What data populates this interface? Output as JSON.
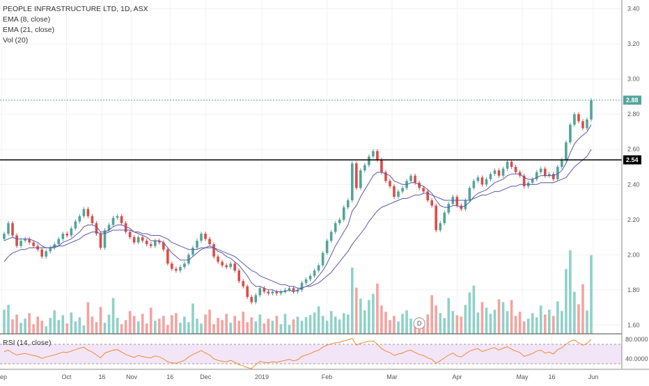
{
  "legend": {
    "title": "PEOPLE INFRASTRUCTURE LTD, 1D, ASX",
    "ema8": "EMA (8, close)",
    "ema21": "EMA (21, close)",
    "vol": "Vol (20)"
  },
  "rsi_legend": "RSI (14, close)",
  "dividend_marker": "D",
  "colors": {
    "up": "#52a49a",
    "down": "#dd4b47",
    "vol_up": "#8fd1c8",
    "vol_down": "#f4a3a0",
    "ema": "#5957a8",
    "rsi": "#f0892e",
    "rsi_band": "#f3e5f8",
    "grid": "#f0f0f0",
    "resistance": "#000000",
    "last_price": "#52a49a"
  },
  "chart_data": {
    "type": "candlestick",
    "title": "PEOPLE INFRASTRUCTURE LTD, 1D, ASX",
    "y_ticks": [
      "3.40",
      "3.20",
      "3.00",
      "2.80",
      "2.60",
      "2.40",
      "2.20",
      "2.00",
      "1.80",
      "1.60"
    ],
    "ylim": [
      1.55,
      3.45
    ],
    "x_ticks": [
      "Sep",
      "Oct",
      "16",
      "Nov",
      "16",
      "Dec",
      "2019",
      "Feb",
      "Mar",
      "Apr",
      "May",
      "16",
      "Jun"
    ],
    "resistance_level": 2.54,
    "resistance_label": "2.54",
    "last_price": 2.88,
    "last_price_label": "2.88",
    "rsi_ticks": [
      "80.0000",
      "40.0000"
    ],
    "rsi_band": [
      30,
      70
    ],
    "closes": [
      2.12,
      2.18,
      2.11,
      2.05,
      2.08,
      2.09,
      2.07,
      2.05,
      2.03,
      1.99,
      2.02,
      2.04,
      2.06,
      2.09,
      2.12,
      2.11,
      2.15,
      2.19,
      2.22,
      2.26,
      2.22,
      2.18,
      2.12,
      2.04,
      2.14,
      2.17,
      2.21,
      2.22,
      2.18,
      2.13,
      2.1,
      2.07,
      2.1,
      2.08,
      2.06,
      2.05,
      2.08,
      2.07,
      2.03,
      1.95,
      1.92,
      1.91,
      1.93,
      1.95,
      2.0,
      2.04,
      2.08,
      2.12,
      2.09,
      2.06,
      1.99,
      1.96,
      1.94,
      1.93,
      1.95,
      1.91,
      1.85,
      1.82,
      1.76,
      1.73,
      1.77,
      1.81,
      1.79,
      1.78,
      1.79,
      1.78,
      1.79,
      1.8,
      1.81,
      1.79,
      1.8,
      1.84,
      1.86,
      1.88,
      1.91,
      1.94,
      2.01,
      2.08,
      2.13,
      2.18,
      2.2,
      2.27,
      2.31,
      2.52,
      2.38,
      2.48,
      2.51,
      2.56,
      2.59,
      2.54,
      2.47,
      2.42,
      2.39,
      2.33,
      2.36,
      2.38,
      2.42,
      2.45,
      2.41,
      2.38,
      2.36,
      2.31,
      2.28,
      2.14,
      2.18,
      2.24,
      2.29,
      2.33,
      2.28,
      2.26,
      2.31,
      2.38,
      2.42,
      2.44,
      2.4,
      2.43,
      2.46,
      2.48,
      2.45,
      2.49,
      2.53,
      2.5,
      2.47,
      2.45,
      2.39,
      2.41,
      2.43,
      2.47,
      2.49,
      2.45,
      2.46,
      2.43,
      2.5,
      2.54,
      2.64,
      2.74,
      2.8,
      2.76,
      2.72,
      2.77,
      2.88
    ],
    "volumes": [
      3.5,
      4.2,
      2.1,
      2.8,
      1.6,
      2.2,
      3.0,
      1.4,
      2.5,
      1.9,
      1.1,
      2.3,
      3.4,
      2.0,
      2.7,
      1.5,
      3.1,
      1.8,
      2.4,
      1.2,
      4.6,
      2.5,
      1.7,
      3.9,
      1.6,
      2.8,
      5.2,
      2.3,
      1.4,
      2.0,
      3.3,
      2.6,
      1.8,
      2.9,
      1.5,
      3.8,
      1.9,
      2.2,
      2.6,
      1.3,
      2.7,
      3.0,
      1.6,
      2.5,
      1.7,
      4.4,
      2.2,
      1.5,
      2.8,
      3.5,
      1.4,
      2.3,
      2.0,
      2.9,
      1.6,
      2.6,
      1.9,
      3.2,
      1.7,
      2.4,
      1.8,
      2.8,
      1.5,
      2.2,
      1.9,
      2.6,
      1.4,
      2.9,
      1.3,
      2.1,
      2.5,
      1.9,
      2.4,
      2.7,
      3.1,
      4.0,
      2.6,
      1.9,
      3.3,
      2.5,
      2.1,
      3.0,
      2.8,
      9.6,
      6.7,
      5.1,
      3.4,
      4.9,
      5.8,
      7.3,
      4.1,
      3.2,
      2.0,
      2.6,
      1.8,
      2.9,
      3.4,
      2.2,
      1.7,
      2.4,
      1.6,
      2.8,
      5.6,
      4.1,
      3.0,
      2.3,
      5.2,
      3.3,
      2.7,
      2.5,
      4.2,
      6.0,
      7.0,
      3.1,
      4.6,
      3.8,
      2.9,
      3.5,
      5.0,
      4.6,
      3.3,
      4.9,
      2.6,
      3.2,
      1.8,
      2.2,
      3.0,
      2.4,
      4.1,
      2.8,
      3.5,
      2.6,
      4.7,
      3.3,
      9.4,
      12.1,
      6.1,
      4.3,
      7.2,
      3.4,
      11.4
    ],
    "ema8": [
      2.08,
      2.09,
      2.1,
      2.09,
      2.09,
      2.09,
      2.09,
      2.08,
      2.07,
      2.05,
      2.04,
      2.04,
      2.05,
      2.05,
      2.07,
      2.08,
      2.09,
      2.11,
      2.13,
      2.16,
      2.17,
      2.17,
      2.16,
      2.13,
      2.13,
      2.14,
      2.16,
      2.17,
      2.17,
      2.16,
      2.15,
      2.13,
      2.12,
      2.11,
      2.1,
      2.08,
      2.08,
      2.08,
      2.07,
      2.04,
      2.01,
      1.99,
      1.97,
      1.97,
      1.97,
      1.99,
      2.01,
      2.03,
      2.04,
      2.05,
      2.04,
      2.02,
      2.01,
      1.99,
      1.98,
      1.96,
      1.94,
      1.91,
      1.88,
      1.84,
      1.82,
      1.82,
      1.81,
      1.8,
      1.8,
      1.79,
      1.79,
      1.79,
      1.8,
      1.79,
      1.8,
      1.81,
      1.82,
      1.83,
      1.85,
      1.88,
      1.91,
      1.95,
      2.0,
      2.05,
      2.09,
      2.13,
      2.17,
      2.25,
      2.28,
      2.33,
      2.37,
      2.41,
      2.45,
      2.47,
      2.47,
      2.46,
      2.45,
      2.42,
      2.41,
      2.4,
      2.4,
      2.41,
      2.41,
      2.4,
      2.39,
      2.37,
      2.35,
      2.31,
      2.28,
      2.27,
      2.27,
      2.28,
      2.28,
      2.27,
      2.28,
      2.3,
      2.33,
      2.35,
      2.36,
      2.37,
      2.39,
      2.41,
      2.42,
      2.43,
      2.45,
      2.46,
      2.46,
      2.46,
      2.44,
      2.43,
      2.43,
      2.44,
      2.45,
      2.45,
      2.45,
      2.45,
      2.46,
      2.48,
      2.52,
      2.58,
      2.63,
      2.66,
      2.68,
      2.7,
      2.74
    ],
    "ema21": [
      1.96,
      1.99,
      2.01,
      2.02,
      2.03,
      2.03,
      2.04,
      2.04,
      2.04,
      2.04,
      2.04,
      2.04,
      2.04,
      2.05,
      2.05,
      2.06,
      2.07,
      2.08,
      2.09,
      2.11,
      2.12,
      2.13,
      2.13,
      2.12,
      2.12,
      2.13,
      2.14,
      2.14,
      2.14,
      2.14,
      2.14,
      2.13,
      2.13,
      2.12,
      2.12,
      2.11,
      2.11,
      2.11,
      2.1,
      2.09,
      2.07,
      2.06,
      2.05,
      2.04,
      2.03,
      2.03,
      2.03,
      2.04,
      2.04,
      2.04,
      2.04,
      2.03,
      2.02,
      2.01,
      2.0,
      1.99,
      1.97,
      1.95,
      1.93,
      1.91,
      1.9,
      1.88,
      1.87,
      1.86,
      1.85,
      1.84,
      1.83,
      1.83,
      1.82,
      1.82,
      1.81,
      1.81,
      1.82,
      1.82,
      1.83,
      1.84,
      1.86,
      1.88,
      1.9,
      1.93,
      1.96,
      1.99,
      2.02,
      2.06,
      2.09,
      2.12,
      2.15,
      2.19,
      2.22,
      2.25,
      2.27,
      2.28,
      2.29,
      2.3,
      2.31,
      2.32,
      2.32,
      2.33,
      2.34,
      2.34,
      2.35,
      2.35,
      2.34,
      2.33,
      2.32,
      2.31,
      2.31,
      2.31,
      2.31,
      2.31,
      2.31,
      2.31,
      2.32,
      2.33,
      2.34,
      2.34,
      2.35,
      2.36,
      2.36,
      2.37,
      2.38,
      2.39,
      2.39,
      2.4,
      2.4,
      2.4,
      2.4,
      2.4,
      2.41,
      2.41,
      2.41,
      2.41,
      2.42,
      2.43,
      2.44,
      2.47,
      2.5,
      2.52,
      2.54,
      2.56,
      2.6
    ],
    "rsi": [
      55,
      58,
      52,
      48,
      50,
      51,
      49,
      47,
      45,
      41,
      44,
      46,
      48,
      51,
      54,
      53,
      56,
      59,
      62,
      64,
      58,
      54,
      48,
      42,
      52,
      55,
      58,
      59,
      54,
      49,
      46,
      43,
      47,
      45,
      43,
      42,
      46,
      44,
      40,
      34,
      32,
      31,
      34,
      37,
      44,
      49,
      53,
      57,
      52,
      48,
      40,
      37,
      35,
      34,
      37,
      33,
      28,
      26,
      22,
      20,
      28,
      35,
      33,
      32,
      34,
      33,
      35,
      37,
      39,
      36,
      38,
      45,
      48,
      51,
      55,
      58,
      64,
      68,
      71,
      73,
      74,
      77,
      79,
      82,
      68,
      72,
      74,
      76,
      77,
      70,
      61,
      56,
      53,
      47,
      50,
      52,
      56,
      58,
      53,
      49,
      47,
      42,
      39,
      31,
      36,
      42,
      48,
      52,
      46,
      44,
      50,
      56,
      59,
      61,
      55,
      58,
      61,
      63,
      58,
      62,
      65,
      60,
      56,
      53,
      45,
      48,
      51,
      56,
      58,
      52,
      54,
      50,
      59,
      63,
      70,
      76,
      79,
      73,
      68,
      72,
      80
    ]
  }
}
